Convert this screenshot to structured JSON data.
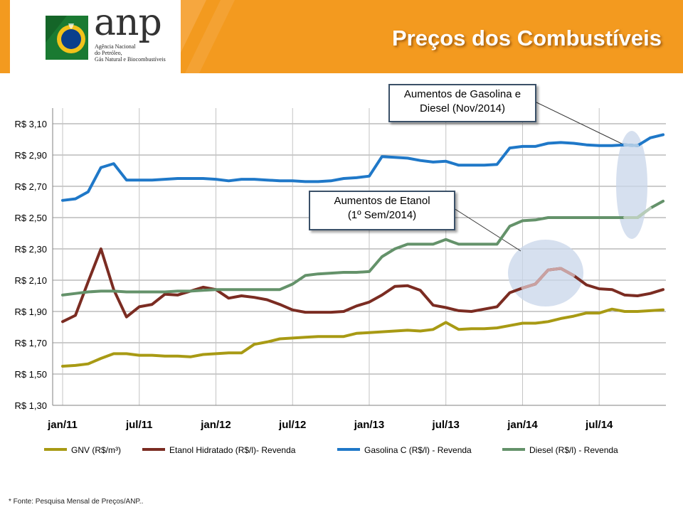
{
  "header": {
    "title": "Preços dos Combustíveis",
    "logo_text": "anp",
    "logo_sub": [
      "Agência Nacional",
      "do Petróleo,",
      "Gás Natural e Biocombustíveis"
    ],
    "accent_color": "#f39a1f"
  },
  "callouts": {
    "gasoline_line1": "Aumentos de Gasolina e",
    "gasoline_line2": "Diesel (Nov/2014)",
    "ethanol_line1": "Aumentos de Etanol",
    "ethanol_line2": "(1º Sem/2014)"
  },
  "footnote": "*  Fonte: Pesquisa Mensal de Preços/ANP..",
  "chart_data": {
    "type": "line",
    "title": "",
    "xlabel": "",
    "ylabel": "",
    "ylim": [
      1.3,
      3.2
    ],
    "yticks": [
      1.3,
      1.5,
      1.7,
      1.9,
      2.1,
      2.3,
      2.5,
      2.7,
      2.9,
      3.1
    ],
    "ytick_labels": [
      "R$ 1,30",
      "R$ 1,50",
      "R$ 1,70",
      "R$ 1,90",
      "R$ 2,10",
      "R$ 2,30",
      "R$ 2,50",
      "R$ 2,70",
      "R$ 2,90",
      "R$ 3,10"
    ],
    "x_tick_labels": [
      "jan/11",
      "jul/11",
      "jan/12",
      "jul/12",
      "jan/13",
      "jul/13",
      "jan/14",
      "jul/14"
    ],
    "x_tick_index": [
      0,
      6,
      12,
      18,
      24,
      30,
      36,
      42
    ],
    "n_months": 48,
    "grid": true,
    "legend_position": "bottom",
    "series": [
      {
        "name": "GNV (R$/m³)",
        "color": "#a89a14",
        "values": [
          1.55,
          1.555,
          1.565,
          1.6,
          1.63,
          1.63,
          1.62,
          1.62,
          1.615,
          1.615,
          1.61,
          1.625,
          1.63,
          1.635,
          1.635,
          1.69,
          1.705,
          1.725,
          1.73,
          1.735,
          1.74,
          1.74,
          1.74,
          1.76,
          1.765,
          1.77,
          1.775,
          1.78,
          1.775,
          1.785,
          1.83,
          1.785,
          1.79,
          1.79,
          1.795,
          1.81,
          1.825,
          1.825,
          1.835,
          1.855,
          1.87,
          1.89,
          1.89,
          1.915,
          1.9,
          1.9,
          1.905,
          1.91
        ]
      },
      {
        "name": "Etanol Hidratado  (R$/l)- Revenda",
        "color": "#7b2c22",
        "highlight_color": "#c9a1a1",
        "highlight_range": [
          36,
          40
        ],
        "values": [
          1.835,
          1.875,
          2.09,
          2.3,
          2.04,
          1.865,
          1.93,
          1.945,
          2.01,
          2.005,
          2.03,
          2.055,
          2.04,
          1.985,
          2.0,
          1.99,
          1.975,
          1.945,
          1.91,
          1.895,
          1.895,
          1.895,
          1.9,
          1.935,
          1.96,
          2.005,
          2.06,
          2.065,
          2.035,
          1.94,
          1.925,
          1.905,
          1.9,
          1.915,
          1.93,
          2.02,
          2.05,
          2.075,
          2.165,
          2.175,
          2.13,
          2.07,
          2.045,
          2.04,
          2.005,
          2.0,
          2.015,
          2.04
        ]
      },
      {
        "name": "Gasolina C (R$/l) - Revenda",
        "color": "#1f78c8",
        "highlight_color": "#a9c8e4",
        "highlight_range": [
          44,
          45
        ],
        "values": [
          2.61,
          2.62,
          2.665,
          2.82,
          2.845,
          2.74,
          2.74,
          2.74,
          2.745,
          2.75,
          2.75,
          2.75,
          2.745,
          2.735,
          2.745,
          2.745,
          2.74,
          2.735,
          2.735,
          2.73,
          2.73,
          2.735,
          2.75,
          2.755,
          2.765,
          2.89,
          2.885,
          2.88,
          2.865,
          2.855,
          2.86,
          2.835,
          2.835,
          2.835,
          2.84,
          2.945,
          2.955,
          2.955,
          2.975,
          2.98,
          2.975,
          2.965,
          2.96,
          2.96,
          2.965,
          2.96,
          3.01,
          3.03
        ]
      },
      {
        "name": "Diesel (R$/l) - Revenda",
        "color": "#64926a",
        "highlight_color": "#b7ccb9",
        "highlight_range": [
          44,
          46
        ],
        "values": [
          2.005,
          2.015,
          2.025,
          2.03,
          2.03,
          2.025,
          2.025,
          2.025,
          2.025,
          2.03,
          2.03,
          2.035,
          2.04,
          2.04,
          2.04,
          2.04,
          2.04,
          2.04,
          2.075,
          2.13,
          2.14,
          2.145,
          2.15,
          2.15,
          2.155,
          2.25,
          2.3,
          2.33,
          2.33,
          2.33,
          2.36,
          2.33,
          2.33,
          2.33,
          2.33,
          2.445,
          2.48,
          2.485,
          2.5,
          2.5,
          2.5,
          2.5,
          2.5,
          2.5,
          2.5,
          2.5,
          2.56,
          2.605
        ]
      }
    ]
  }
}
